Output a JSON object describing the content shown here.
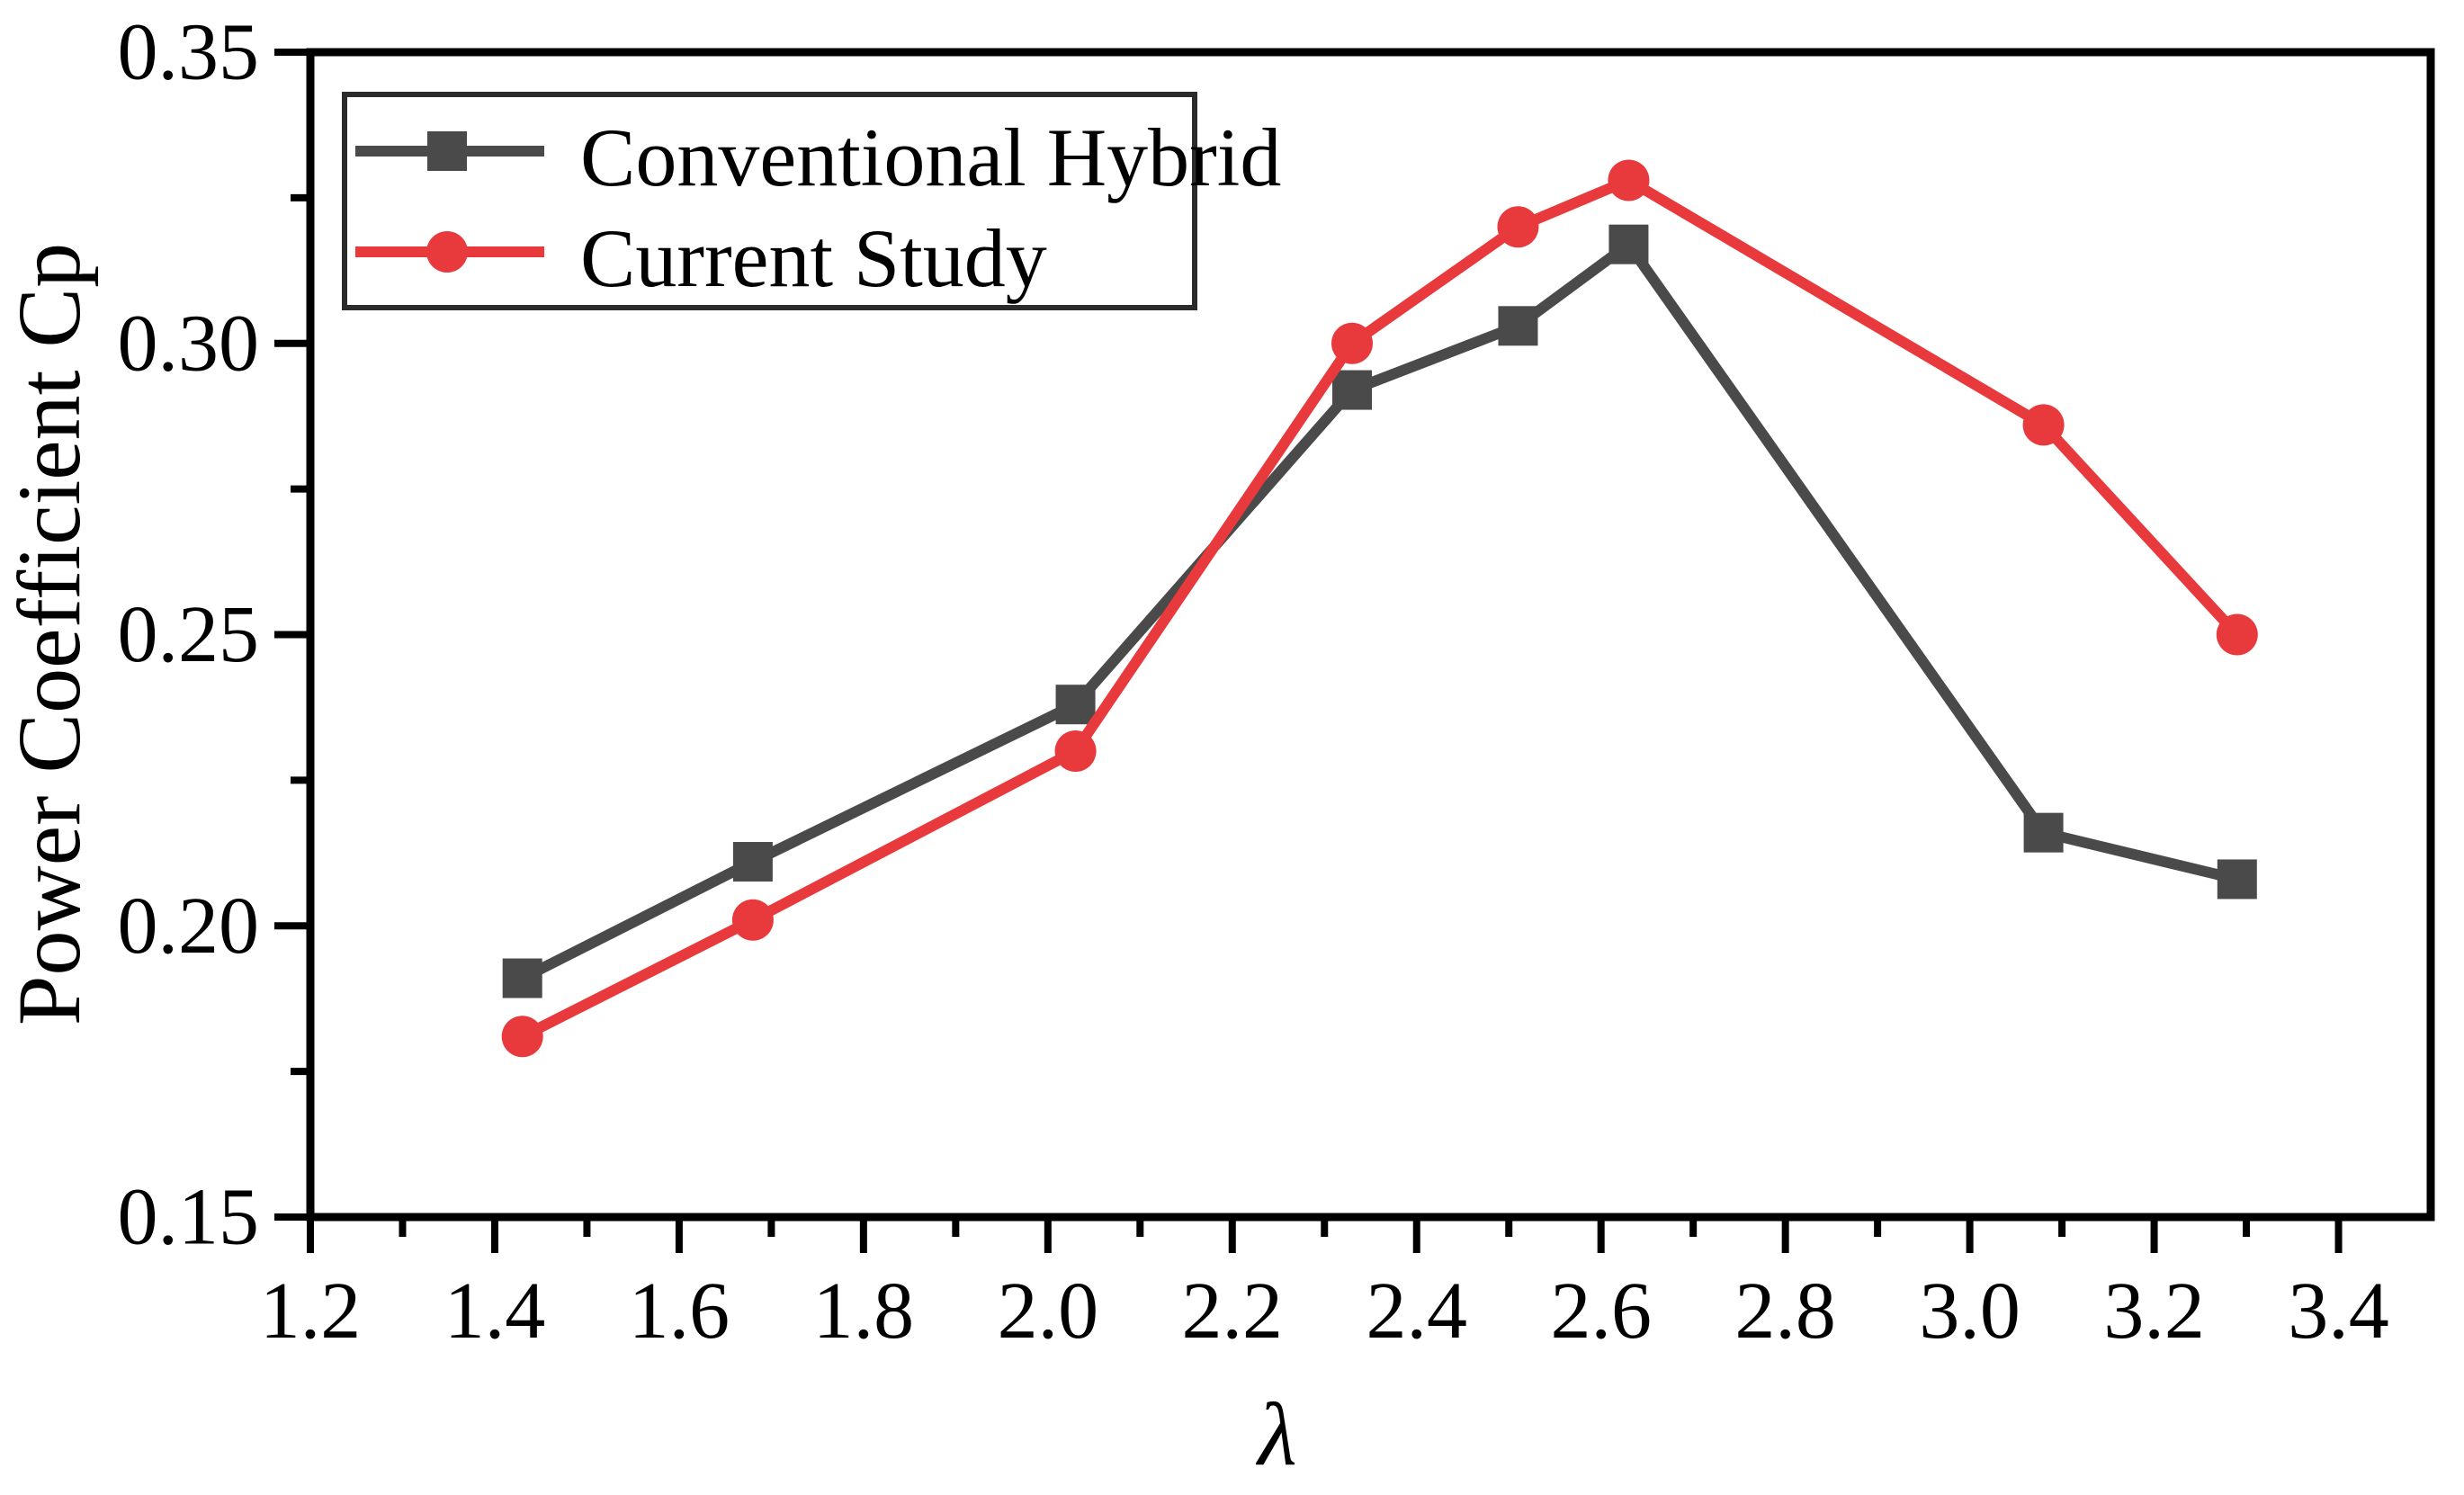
{
  "figure": {
    "background": "#ffffff",
    "axis_color": "#000000",
    "tick_label_color": "#000000"
  },
  "chart_data": {
    "type": "line",
    "title": "",
    "xlabel": "λ",
    "ylabel": "Power Coefficient Cp",
    "xlim": [
      1.2,
      3.5
    ],
    "ylim": [
      0.15,
      0.35
    ],
    "grid": false,
    "legend_position": "top-left",
    "x": [
      1.43,
      1.68,
      2.03,
      2.33,
      2.51,
      2.63,
      3.08,
      3.29
    ],
    "series": [
      {
        "name": "Conventional Hybrid",
        "marker": "square",
        "color": "#4a4a4a",
        "values": [
          0.191,
          0.211,
          0.238,
          0.292,
          0.303,
          0.317,
          0.216,
          0.208
        ]
      },
      {
        "name": "Current Study",
        "marker": "circle",
        "color": "#e8393d",
        "values": [
          0.181,
          0.201,
          0.23,
          0.3,
          0.32,
          0.328,
          0.286,
          0.25
        ]
      }
    ],
    "x_major_ticks": [
      1.2,
      1.4,
      1.6,
      1.8,
      2.0,
      2.2,
      2.4,
      2.6,
      2.8,
      3.0,
      3.2,
      3.4
    ],
    "x_tick_labels": [
      "1.2",
      "1.4",
      "1.6",
      "1.8",
      "2.0",
      "2.2",
      "2.4",
      "2.6",
      "2.8",
      "3.0",
      "3.2",
      "3.4"
    ],
    "x_minor_ticks": [
      1.3,
      1.5,
      1.7,
      1.9,
      2.1,
      2.3,
      2.5,
      2.7,
      2.9,
      3.1,
      3.3
    ],
    "y_major_ticks": [
      0.15,
      0.2,
      0.25,
      0.3,
      0.35
    ],
    "y_tick_labels": [
      "0.15",
      "0.20",
      "0.25",
      "0.30",
      "0.35"
    ],
    "y_minor_ticks": [
      0.175,
      0.225,
      0.275,
      0.325
    ]
  }
}
